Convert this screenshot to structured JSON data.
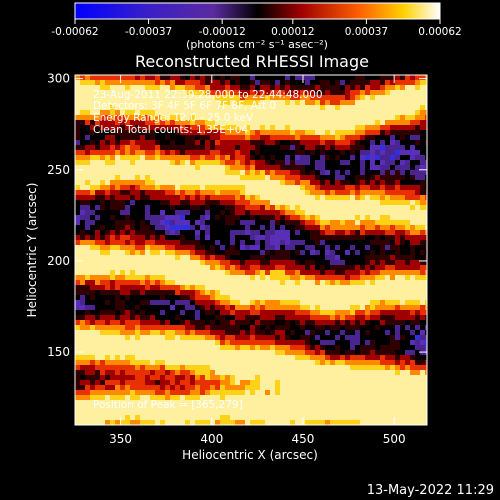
{
  "chart_data": {
    "type": "heatmap",
    "title": "Reconstructed RHESSI Image",
    "colorbar": {
      "ticks": [
        "-0.00062",
        "-0.00037",
        "-0.00012",
        "0.00012",
        "0.00037",
        "0.00062"
      ],
      "units_label": "(photons cm⁻² s⁻¹ asec⁻²)",
      "range": [
        -0.00062,
        0.00062
      ]
    },
    "xlabel": "Heliocentric X (arcsec)",
    "ylabel": "Heliocentric Y (arcsec)",
    "xlim": [
      325,
      518
    ],
    "ylim": [
      110,
      302
    ],
    "xticks": [
      350,
      400,
      450,
      500
    ],
    "yticks": [
      150,
      200,
      250,
      300
    ],
    "annotations": [
      "23-Aug-2011 22:39:28.000 to 22:44:48.000",
      "Detectors: 3F 4F 5F 6F 7F 8F, Att 0",
      "Energy Range: 12.0 - 25.0 keV",
      "Clean      Total counts: 1.35E+04"
    ],
    "peak_label": "Position of Peak = [365,279]",
    "peak_position": [
      365,
      279
    ],
    "bright_ridges": [
      {
        "x": [
          325,
          370,
          420,
          470,
          518
        ],
        "y": [
          290,
          288,
          280,
          278,
          290
        ],
        "strength": 0.95
      },
      {
        "x": [
          325,
          360,
          410,
          460,
          518
        ],
        "y": [
          248,
          250,
          245,
          230,
          225
        ],
        "strength": 0.85
      },
      {
        "x": [
          325,
          370,
          420,
          470,
          518
        ],
        "y": [
          200,
          198,
          185,
          180,
          185
        ],
        "strength": 0.9
      },
      {
        "x": [
          325,
          370,
          420,
          470,
          518
        ],
        "y": [
          155,
          152,
          145,
          135,
          130
        ],
        "strength": 0.95
      },
      {
        "x": [
          490,
          500,
          510,
          518
        ],
        "y": [
          118,
          115,
          112,
          110
        ],
        "strength": 0.9
      }
    ],
    "grid": false
  },
  "footer": {
    "timestamp": "13-May-2022 11:29"
  }
}
